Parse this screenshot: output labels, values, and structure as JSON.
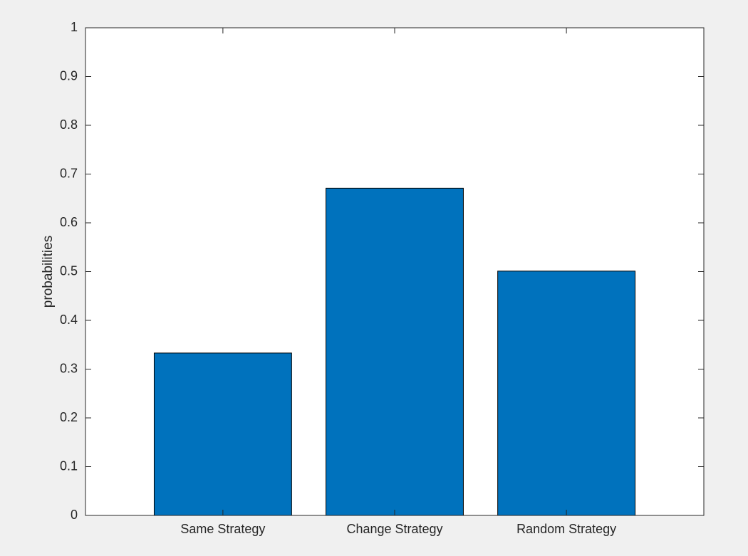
{
  "chart_data": {
    "type": "bar",
    "title": "",
    "xlabel": "",
    "ylabel": "probabilities",
    "categories": [
      "Same Strategy",
      "Change Strategy",
      "Random Strategy"
    ],
    "values": [
      0.333,
      0.671,
      0.501
    ],
    "ylim": [
      0,
      1
    ],
    "xlim": [
      0.2,
      3.8
    ],
    "yticks": [
      "0",
      "0.1",
      "0.2",
      "0.3",
      "0.4",
      "0.5",
      "0.6",
      "0.7",
      "0.8",
      "0.9",
      "1"
    ],
    "ytick_values": [
      0,
      0.1,
      0.2,
      0.3,
      0.4,
      0.5,
      0.6,
      0.7,
      0.8,
      0.9,
      1
    ],
    "bar_color": "#0072BD",
    "edge_color": "#000000",
    "background_color": "#ffffff",
    "figure_color": "#f0f0f0",
    "grid": false,
    "legend": "none"
  }
}
